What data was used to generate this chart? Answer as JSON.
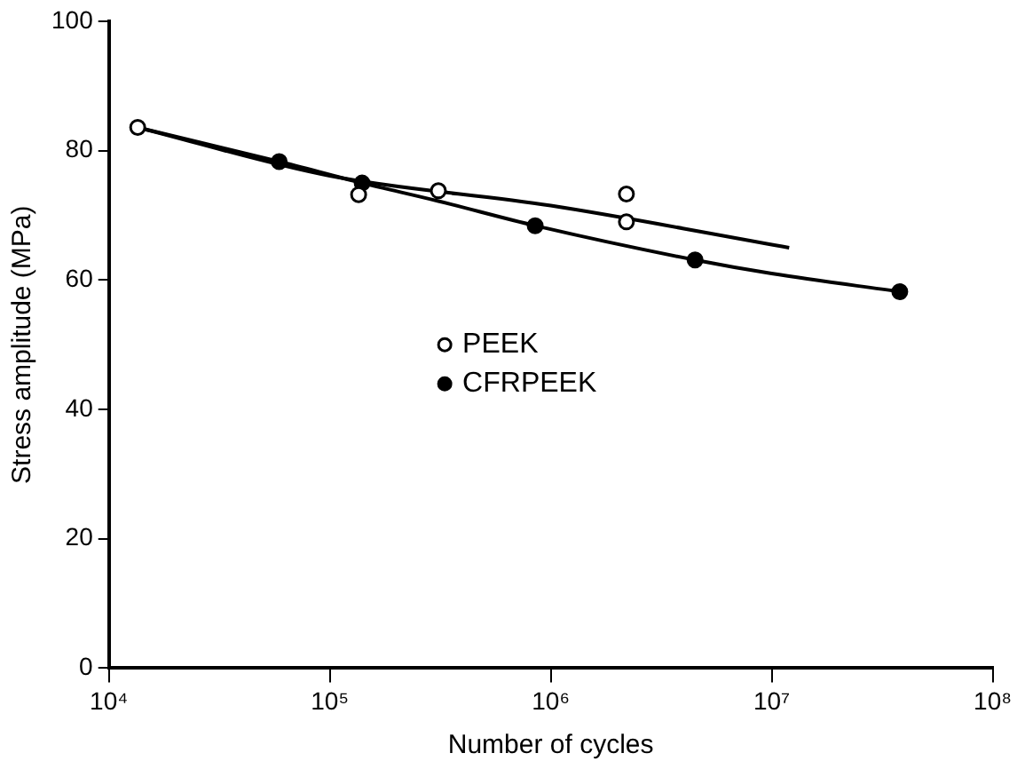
{
  "chart_data": {
    "type": "scatter",
    "xlabel": "Number of cycles",
    "ylabel": "Stress amplitude (MPa)",
    "log": "x",
    "xlim": [
      10000,
      100000000
    ],
    "xticks": [
      {
        "value": 10000,
        "label": "10⁴"
      },
      {
        "value": 100000,
        "label": "10⁵"
      },
      {
        "value": 1000000,
        "label": "10⁶"
      },
      {
        "value": 10000000,
        "label": "10⁷"
      },
      {
        "value": 100000000,
        "label": "10⁸"
      }
    ],
    "ylim": [
      0,
      100
    ],
    "yticks": [
      0,
      20,
      40,
      60,
      80,
      100
    ],
    "grid": false,
    "legend": "center",
    "marker": "circle",
    "series": [
      {
        "name": "PEEK",
        "color": "#000000",
        "x": [
          13500,
          135000,
          310000,
          2200000,
          2200000
        ],
        "values": [
          83.6,
          73.2,
          73.8,
          73.3,
          69.0
        ]
      },
      {
        "name": "CFRPEEK",
        "color": "#000000",
        "x": [
          59000,
          140000,
          850000,
          4500000,
          38000000
        ],
        "values": [
          78.3,
          75.0,
          68.4,
          63.1,
          58.2
        ]
      },
      {
        "type": "line",
        "color": "#000000",
        "marker": "none",
        "x": [
          13500,
          100000,
          1000000,
          12000000
        ],
        "values": [
          83.6,
          76.1,
          71.5,
          65.0
        ]
      },
      {
        "type": "line",
        "color": "#000000",
        "marker": "none",
        "x": [
          13500,
          59000,
          140000,
          310000,
          850000,
          4500000,
          10000000,
          38000000
        ],
        "values": [
          83.6,
          78.3,
          75.0,
          72.2,
          68.4,
          63.1,
          61.0,
          58.2
        ]
      }
    ]
  }
}
